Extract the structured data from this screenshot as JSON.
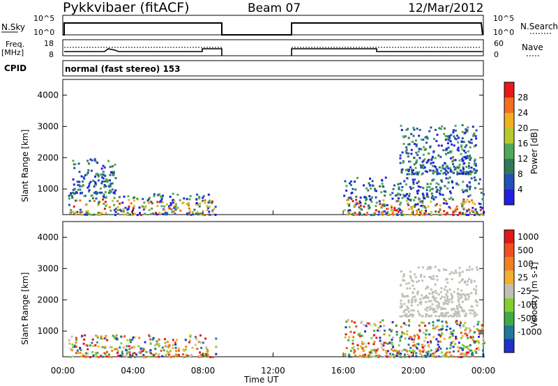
{
  "header": {
    "station": "Pykkvibaer (fitACF)",
    "beam": "Beam 07",
    "date": "12/Mar/2012"
  },
  "panels": {
    "nsky_label": "N.Sky",
    "nsearch_label": "N.Search",
    "nsky_ticks": [
      "10^5",
      "10^0"
    ],
    "nsearch_ticks": [
      "10^5",
      "10^0"
    ],
    "freq_label": "Freq.",
    "freq_unit": "[MHz]",
    "freq_ticks": [
      "18",
      "8"
    ],
    "nave_label": "Nave",
    "nave_ticks": [
      "60",
      "0"
    ],
    "cpid_label": "CPID",
    "cpid_text": "normal (fast stereo)  153"
  },
  "chart_data": [
    {
      "type": "heatmap",
      "title": "",
      "ylabel": "Slant Range [km]",
      "ylim": [
        180,
        4500
      ],
      "yticks": [
        1000,
        2000,
        3000,
        4000
      ],
      "xlabel": "Time UT",
      "xticks": [
        "00:00",
        "04:00",
        "08:00",
        "12:00",
        "16:00",
        "20:00",
        "00:00"
      ],
      "colorbar": {
        "label": "Power [dB]",
        "ticks": [
          "28",
          "24",
          "20",
          "16",
          "12",
          "8",
          "4"
        ],
        "colors": [
          "#2020e0",
          "#2050b8",
          "#307858",
          "#50a858",
          "#b8c830",
          "#f0b020",
          "#f07020",
          "#e81818"
        ]
      },
      "regions": [
        {
          "name": "morning-low",
          "t_start": 0.3,
          "t_end": 8.7,
          "r_min": 200,
          "r_max": 900,
          "level": "mid"
        },
        {
          "name": "morning-high",
          "t_start": 0.5,
          "t_end": 3.0,
          "r_min": 900,
          "r_max": 2000,
          "level": "low"
        },
        {
          "name": "evening-arc",
          "t_start": 19.2,
          "t_end": 23.6,
          "r_min": 1500,
          "r_max": 3100,
          "level": "mid"
        },
        {
          "name": "evening-low",
          "t_start": 16.0,
          "t_end": 24.0,
          "r_min": 200,
          "r_max": 1400,
          "level": "mid"
        }
      ]
    },
    {
      "type": "heatmap",
      "title": "",
      "ylabel": "Slant Range [km]",
      "ylim": [
        180,
        4500
      ],
      "yticks": [
        1000,
        2000,
        3000,
        4000
      ],
      "xlabel": "Time UT",
      "xticks": [
        "00:00",
        "04:00",
        "08:00",
        "12:00",
        "16:00",
        "20:00",
        "00:00"
      ],
      "colorbar": {
        "label": "Velocity [m s-1]",
        "ticks": [
          "1000",
          "500",
          "100",
          "25",
          "-25",
          "-100",
          "-500",
          "-1000"
        ],
        "colors": [
          "#2030c8",
          "#207898",
          "#40a848",
          "#80d030",
          "#c0c0b8",
          "#f0b030",
          "#f08020",
          "#f05020",
          "#e01818"
        ]
      },
      "regions": [
        {
          "name": "morning-low",
          "t_start": 0.3,
          "t_end": 8.7,
          "r_min": 200,
          "r_max": 900,
          "level": "negative-and-positive"
        },
        {
          "name": "evening-arc",
          "t_start": 19.2,
          "t_end": 23.6,
          "r_min": 1500,
          "r_max": 3100,
          "level": "near-zero"
        },
        {
          "name": "evening-low",
          "t_start": 16.0,
          "t_end": 24.0,
          "r_min": 200,
          "r_max": 1400,
          "level": "mixed"
        }
      ]
    }
  ]
}
